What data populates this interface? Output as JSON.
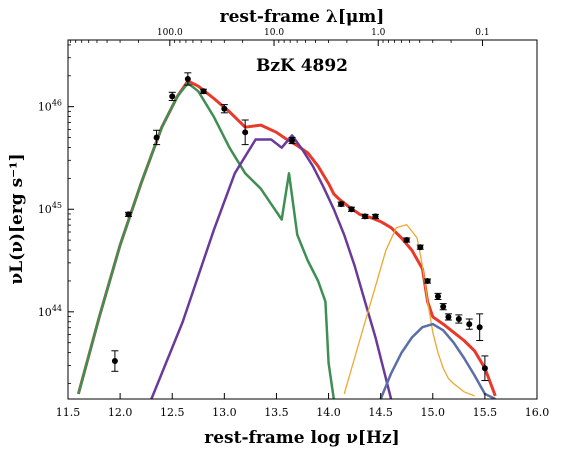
{
  "chart_data": {
    "type": "line",
    "title": "BzK 4892",
    "xlabel": "rest-frame log ν[Hz]",
    "x2label": "rest-frame λ[μm]",
    "ylabel": "νL(ν)[erg s⁻¹]",
    "xlim": [
      11.5,
      16.0
    ],
    "ylim_log10": [
      43.15,
      46.65
    ],
    "yscale": "log",
    "grid": false,
    "xticks": [
      "11.5",
      "12.0",
      "12.5",
      "13.0",
      "13.5",
      "14.0",
      "14.5",
      "15.0",
      "15.5",
      "16.0"
    ],
    "yticks": [
      {
        "value": 44,
        "label": "10",
        "exp": "44"
      },
      {
        "value": 45,
        "label": "10",
        "exp": "45"
      },
      {
        "value": 46,
        "label": "10",
        "exp": "46"
      }
    ],
    "x2ticks": [
      {
        "label": "100.0",
        "um": 100
      },
      {
        "label": "10.0",
        "um": 10
      },
      {
        "label": "1.0",
        "um": 1
      },
      {
        "label": "0.1",
        "um": 0.1
      }
    ],
    "series": [
      {
        "color": "#e8392b",
        "role": "total model",
        "x": [
          11.6,
          11.8,
          12.0,
          12.2,
          12.4,
          12.55,
          12.65,
          12.75,
          12.9,
          13.05,
          13.2,
          13.35,
          13.5,
          13.6,
          13.7,
          13.8,
          13.9,
          14.0,
          14.05,
          14.1,
          14.2,
          14.3,
          14.4,
          14.5,
          14.6,
          14.7,
          14.8,
          14.9,
          14.95,
          15.0,
          15.1,
          15.2,
          15.3,
          15.4,
          15.5,
          15.6
        ],
        "y": [
          43.2,
          43.95,
          44.65,
          45.25,
          45.8,
          46.1,
          46.25,
          46.2,
          46.08,
          45.95,
          45.8,
          45.82,
          45.75,
          45.68,
          45.62,
          45.55,
          45.42,
          45.25,
          45.15,
          45.1,
          45.02,
          44.95,
          44.92,
          44.88,
          44.82,
          44.72,
          44.6,
          44.42,
          44.1,
          43.95,
          43.88,
          43.8,
          43.72,
          43.62,
          43.45,
          43.18
        ]
      },
      {
        "color": "#3f8e54",
        "role": "cold dust",
        "x": [
          11.6,
          11.8,
          12.0,
          12.2,
          12.4,
          12.55,
          12.65,
          12.75,
          12.9,
          13.05,
          13.2,
          13.35,
          13.45,
          13.55,
          13.62,
          13.7,
          13.8,
          13.9,
          13.97,
          14.0,
          14.05
        ],
        "y": [
          43.2,
          43.95,
          44.65,
          45.25,
          45.8,
          46.1,
          46.23,
          46.15,
          45.9,
          45.6,
          45.35,
          45.2,
          45.05,
          44.9,
          45.35,
          44.75,
          44.5,
          44.3,
          44.1,
          43.5,
          43.15
        ]
      },
      {
        "color": "#6a3a9a",
        "role": "AGN torus",
        "x": [
          12.3,
          12.6,
          12.9,
          13.1,
          13.3,
          13.45,
          13.55,
          13.65,
          13.75,
          13.85,
          13.95,
          14.05,
          14.15,
          14.25,
          14.35,
          14.45,
          14.55,
          14.6
        ],
        "y": [
          43.15,
          43.9,
          44.8,
          45.35,
          45.68,
          45.68,
          45.6,
          45.72,
          45.58,
          45.42,
          45.22,
          45.0,
          44.75,
          44.45,
          44.1,
          43.75,
          43.35,
          43.15
        ]
      },
      {
        "color": "#f0a830",
        "role": "stellar",
        "x": [
          14.15,
          14.25,
          14.35,
          14.45,
          14.55,
          14.65,
          14.75,
          14.85,
          14.9,
          14.95,
          15.0,
          15.05,
          15.1,
          15.15,
          15.2,
          15.3,
          15.4
        ],
        "y": [
          43.2,
          43.55,
          43.9,
          44.25,
          44.6,
          44.82,
          44.85,
          44.72,
          44.45,
          44.1,
          43.8,
          43.6,
          43.45,
          43.35,
          43.3,
          43.22,
          43.18
        ]
      },
      {
        "color": "#5a6ea8",
        "role": "accretion disk",
        "x": [
          14.5,
          14.6,
          14.7,
          14.8,
          14.9,
          15.0,
          15.1,
          15.2,
          15.3,
          15.4,
          15.5,
          15.6
        ],
        "y": [
          43.15,
          43.4,
          43.6,
          43.75,
          43.85,
          43.88,
          43.82,
          43.7,
          43.55,
          43.38,
          43.2,
          43.15
        ]
      }
    ],
    "points": [
      {
        "x": 11.95,
        "y": 43.52,
        "err": 0.1
      },
      {
        "x": 12.08,
        "y": 44.95,
        "err": 0.02
      },
      {
        "x": 12.35,
        "y": 45.7,
        "err": 0.07
      },
      {
        "x": 12.5,
        "y": 46.1,
        "err": 0.04
      },
      {
        "x": 12.65,
        "y": 46.27,
        "err": 0.06
      },
      {
        "x": 12.8,
        "y": 46.15,
        "err": 0.02
      },
      {
        "x": 13.0,
        "y": 45.98,
        "err": 0.04
      },
      {
        "x": 13.2,
        "y": 45.75,
        "err": 0.12
      },
      {
        "x": 13.65,
        "y": 45.67,
        "err": 0.03
      },
      {
        "x": 14.12,
        "y": 45.05,
        "err": 0.02
      },
      {
        "x": 14.22,
        "y": 45.0,
        "err": 0.02
      },
      {
        "x": 14.35,
        "y": 44.93,
        "err": 0.02
      },
      {
        "x": 14.45,
        "y": 44.93,
        "err": 0.02
      },
      {
        "x": 14.75,
        "y": 44.7,
        "err": 0.02
      },
      {
        "x": 14.88,
        "y": 44.63,
        "err": 0.02
      },
      {
        "x": 14.95,
        "y": 44.3,
        "err": 0.02
      },
      {
        "x": 15.05,
        "y": 44.15,
        "err": 0.03
      },
      {
        "x": 15.1,
        "y": 44.05,
        "err": 0.03
      },
      {
        "x": 15.15,
        "y": 43.95,
        "err": 0.03
      },
      {
        "x": 15.25,
        "y": 43.93,
        "err": 0.04
      },
      {
        "x": 15.35,
        "y": 43.88,
        "err": 0.05
      },
      {
        "x": 15.45,
        "y": 43.85,
        "err": 0.13
      },
      {
        "x": 15.5,
        "y": 43.45,
        "err": 0.12
      }
    ]
  }
}
